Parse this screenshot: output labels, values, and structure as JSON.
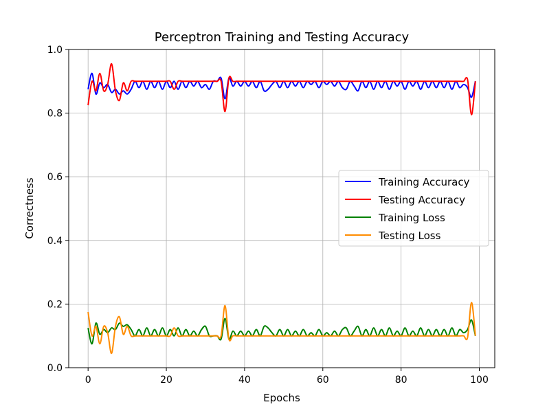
{
  "chart_data": {
    "type": "line",
    "title": "Perceptron Training and Testing Accuracy",
    "xlabel": "Epochs",
    "ylabel": "Correctness",
    "xlim": [
      -4.95,
      103.95
    ],
    "ylim": [
      0.0,
      1.0
    ],
    "xticks": [
      0,
      20,
      40,
      60,
      80,
      100
    ],
    "yticks": [
      0.0,
      0.2,
      0.4,
      0.6,
      0.8,
      1.0
    ],
    "xtick_labels": [
      "0",
      "20",
      "40",
      "60",
      "80",
      "100"
    ],
    "ytick_labels": [
      "0.0",
      "0.2",
      "0.4",
      "0.6",
      "0.8",
      "1.0"
    ],
    "grid": true,
    "legend_position": "center-right",
    "x": [
      0,
      1,
      2,
      3,
      4,
      5,
      6,
      7,
      8,
      9,
      10,
      11,
      12,
      13,
      14,
      15,
      16,
      17,
      18,
      19,
      20,
      21,
      22,
      23,
      24,
      25,
      26,
      27,
      28,
      29,
      30,
      31,
      32,
      33,
      34,
      35,
      36,
      37,
      38,
      39,
      40,
      41,
      42,
      43,
      44,
      45,
      46,
      47,
      48,
      49,
      50,
      51,
      52,
      53,
      54,
      55,
      56,
      57,
      58,
      59,
      60,
      61,
      62,
      63,
      64,
      65,
      66,
      67,
      68,
      69,
      70,
      71,
      72,
      73,
      74,
      75,
      76,
      77,
      78,
      79,
      80,
      81,
      82,
      83,
      84,
      85,
      86,
      87,
      88,
      89,
      90,
      91,
      92,
      93,
      94,
      95,
      96,
      97,
      98,
      99
    ],
    "series": [
      {
        "name": "Training Accuracy",
        "color": "#0000ff",
        "values": [
          0.875,
          0.925,
          0.86,
          0.895,
          0.88,
          0.89,
          0.865,
          0.875,
          0.86,
          0.87,
          0.86,
          0.875,
          0.9,
          0.88,
          0.9,
          0.875,
          0.9,
          0.88,
          0.9,
          0.875,
          0.9,
          0.88,
          0.9,
          0.875,
          0.9,
          0.88,
          0.9,
          0.885,
          0.9,
          0.88,
          0.89,
          0.875,
          0.9,
          0.9,
          0.91,
          0.845,
          0.91,
          0.885,
          0.9,
          0.885,
          0.9,
          0.885,
          0.9,
          0.88,
          0.9,
          0.87,
          0.875,
          0.89,
          0.9,
          0.88,
          0.9,
          0.88,
          0.9,
          0.885,
          0.9,
          0.88,
          0.9,
          0.89,
          0.9,
          0.88,
          0.9,
          0.89,
          0.9,
          0.885,
          0.9,
          0.88,
          0.875,
          0.9,
          0.885,
          0.87,
          0.9,
          0.88,
          0.9,
          0.875,
          0.9,
          0.88,
          0.9,
          0.875,
          0.9,
          0.885,
          0.9,
          0.875,
          0.9,
          0.885,
          0.9,
          0.875,
          0.9,
          0.88,
          0.9,
          0.88,
          0.9,
          0.88,
          0.9,
          0.875,
          0.9,
          0.88,
          0.89,
          0.88,
          0.85,
          0.9
        ]
      },
      {
        "name": "Testing Accuracy",
        "color": "#ff0000",
        "values": [
          0.825,
          0.9,
          0.87,
          0.925,
          0.87,
          0.89,
          0.955,
          0.87,
          0.84,
          0.895,
          0.87,
          0.9,
          0.9,
          0.9,
          0.9,
          0.9,
          0.9,
          0.9,
          0.9,
          0.9,
          0.9,
          0.9,
          0.875,
          0.9,
          0.9,
          0.9,
          0.9,
          0.9,
          0.9,
          0.9,
          0.9,
          0.9,
          0.9,
          0.9,
          0.9,
          0.805,
          0.91,
          0.9,
          0.9,
          0.9,
          0.9,
          0.9,
          0.9,
          0.9,
          0.9,
          0.9,
          0.9,
          0.9,
          0.9,
          0.9,
          0.9,
          0.9,
          0.9,
          0.9,
          0.9,
          0.9,
          0.9,
          0.9,
          0.9,
          0.9,
          0.9,
          0.9,
          0.9,
          0.9,
          0.9,
          0.9,
          0.9,
          0.9,
          0.9,
          0.9,
          0.9,
          0.9,
          0.9,
          0.9,
          0.9,
          0.9,
          0.9,
          0.9,
          0.9,
          0.9,
          0.9,
          0.9,
          0.9,
          0.9,
          0.9,
          0.9,
          0.9,
          0.9,
          0.9,
          0.9,
          0.9,
          0.9,
          0.9,
          0.9,
          0.9,
          0.9,
          0.9,
          0.905,
          0.795,
          0.9
        ]
      },
      {
        "name": "Training Loss",
        "color": "#008000",
        "values": [
          0.125,
          0.075,
          0.14,
          0.105,
          0.12,
          0.11,
          0.125,
          0.12,
          0.14,
          0.13,
          0.135,
          0.12,
          0.1,
          0.12,
          0.1,
          0.125,
          0.1,
          0.12,
          0.1,
          0.125,
          0.1,
          0.12,
          0.1,
          0.125,
          0.1,
          0.12,
          0.1,
          0.115,
          0.1,
          0.12,
          0.13,
          0.1,
          0.1,
          0.1,
          0.09,
          0.155,
          0.09,
          0.115,
          0.1,
          0.115,
          0.1,
          0.115,
          0.1,
          0.12,
          0.1,
          0.13,
          0.125,
          0.11,
          0.1,
          0.12,
          0.1,
          0.12,
          0.1,
          0.115,
          0.1,
          0.12,
          0.1,
          0.11,
          0.1,
          0.12,
          0.1,
          0.11,
          0.1,
          0.115,
          0.1,
          0.12,
          0.125,
          0.1,
          0.115,
          0.13,
          0.1,
          0.12,
          0.1,
          0.125,
          0.1,
          0.12,
          0.1,
          0.125,
          0.1,
          0.115,
          0.1,
          0.125,
          0.1,
          0.115,
          0.1,
          0.125,
          0.1,
          0.12,
          0.1,
          0.12,
          0.1,
          0.12,
          0.1,
          0.125,
          0.1,
          0.12,
          0.11,
          0.12,
          0.15,
          0.1
        ]
      },
      {
        "name": "Testing Loss",
        "color": "#ff8c00",
        "values": [
          0.175,
          0.1,
          0.13,
          0.075,
          0.13,
          0.11,
          0.045,
          0.13,
          0.16,
          0.105,
          0.13,
          0.1,
          0.1,
          0.1,
          0.1,
          0.1,
          0.1,
          0.1,
          0.1,
          0.1,
          0.1,
          0.1,
          0.125,
          0.1,
          0.1,
          0.1,
          0.1,
          0.1,
          0.1,
          0.1,
          0.1,
          0.1,
          0.1,
          0.1,
          0.1,
          0.195,
          0.09,
          0.1,
          0.1,
          0.1,
          0.1,
          0.1,
          0.1,
          0.1,
          0.1,
          0.1,
          0.1,
          0.1,
          0.1,
          0.1,
          0.1,
          0.1,
          0.1,
          0.1,
          0.1,
          0.1,
          0.1,
          0.1,
          0.1,
          0.1,
          0.1,
          0.1,
          0.1,
          0.1,
          0.1,
          0.1,
          0.1,
          0.1,
          0.1,
          0.1,
          0.1,
          0.1,
          0.1,
          0.1,
          0.1,
          0.1,
          0.1,
          0.1,
          0.1,
          0.1,
          0.1,
          0.1,
          0.1,
          0.1,
          0.1,
          0.1,
          0.1,
          0.1,
          0.1,
          0.1,
          0.1,
          0.1,
          0.1,
          0.1,
          0.1,
          0.1,
          0.1,
          0.095,
          0.205,
          0.1
        ]
      }
    ]
  }
}
